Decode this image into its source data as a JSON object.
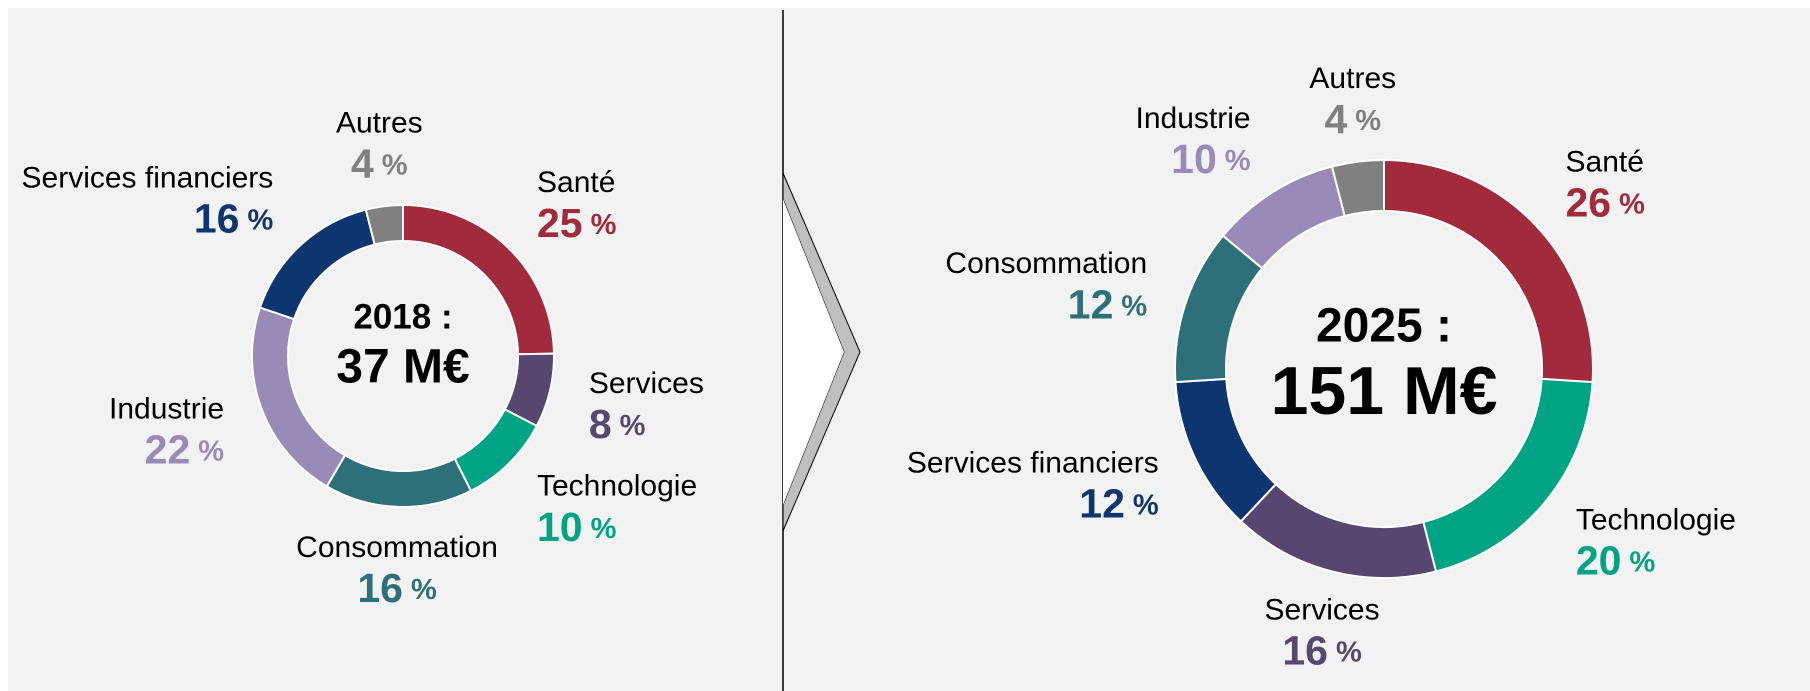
{
  "chart_data": [
    {
      "type": "donut",
      "title": "2018 :",
      "subtitle": "37 M€",
      "unit": "%",
      "categories": [
        "Santé",
        "Services",
        "Technologie",
        "Consommation",
        "Industrie",
        "Services financiers",
        "Autres"
      ],
      "values": [
        25,
        8,
        10,
        16,
        22,
        16,
        4
      ],
      "colors": [
        "#a12a3d",
        "#574670",
        "#00a383",
        "#2e707a",
        "#9a8ab8",
        "#0d3570",
        "#808080"
      ]
    },
    {
      "type": "donut",
      "title": "2025 :",
      "subtitle": "151 M€",
      "unit": "%",
      "categories": [
        "Santé",
        "Technologie",
        "Services",
        "Services financiers",
        "Consommation",
        "Industrie",
        "Autres"
      ],
      "values": [
        26,
        20,
        16,
        12,
        12,
        10,
        4
      ],
      "colors": [
        "#a12a3d",
        "#00a383",
        "#574670",
        "#0d3570",
        "#2e707a",
        "#9a8ab8",
        "#808080"
      ]
    }
  ]
}
